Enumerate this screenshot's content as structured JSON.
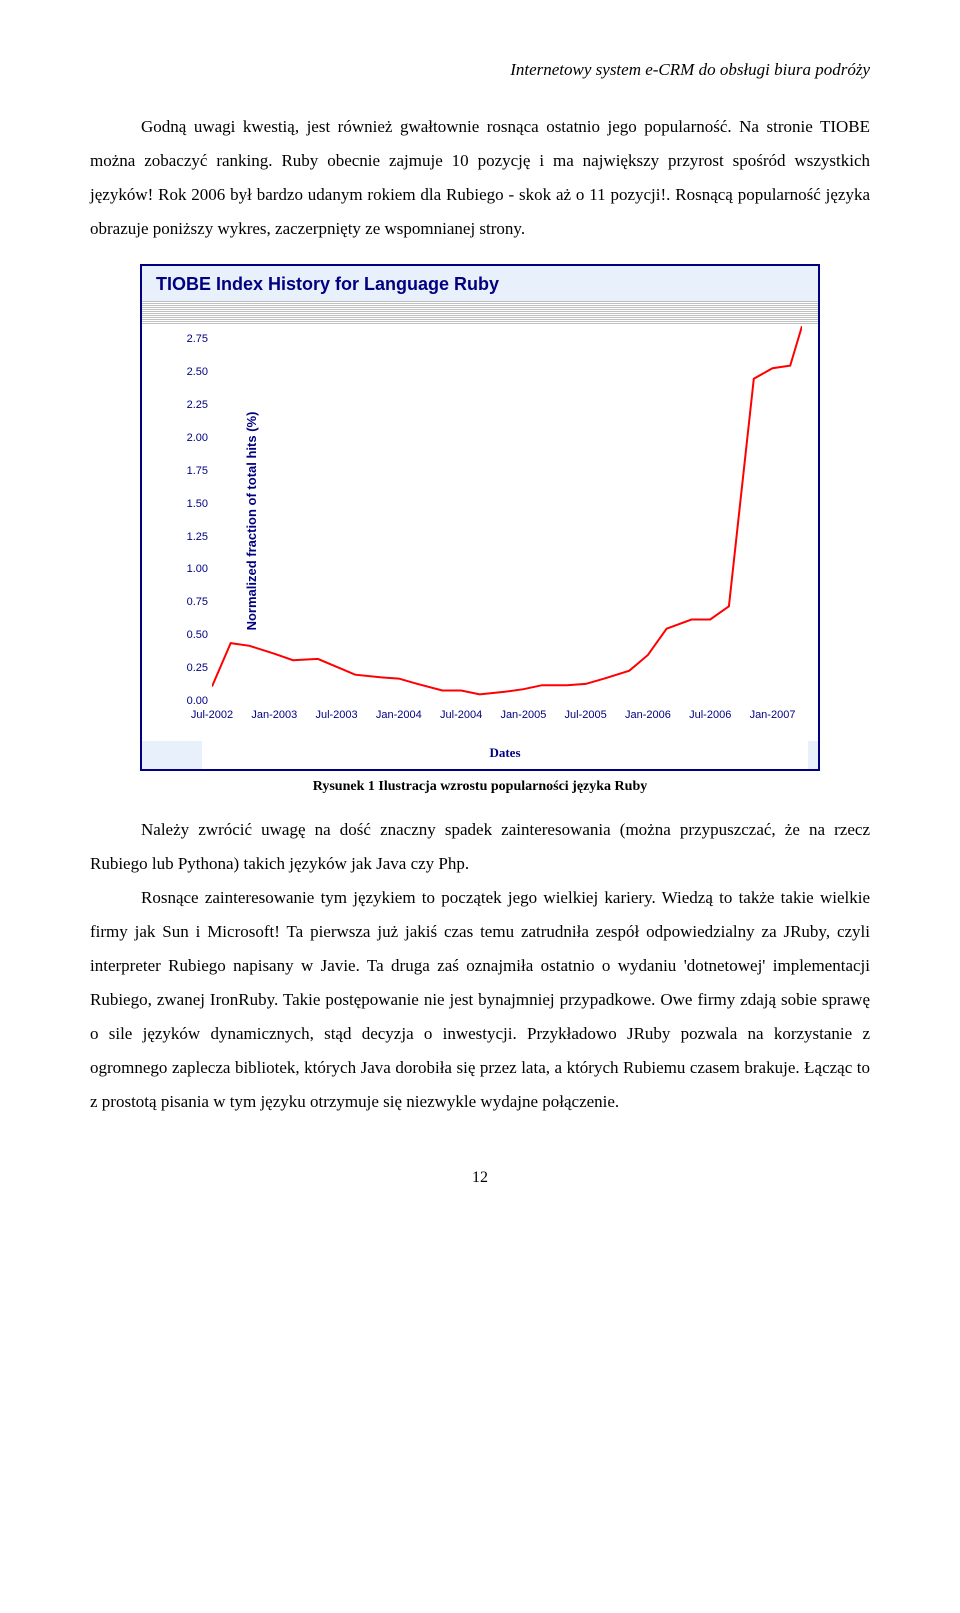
{
  "header": {
    "running_title": "Internetowy system e-CRM do obsługi biura podróży"
  },
  "paragraphs": {
    "p1": "Godną uwagi kwestią, jest również gwałtownie rosnąca ostatnio jego popularność. Na stronie TIOBE można zobaczyć ranking. Ruby obecnie zajmuje 10 pozycję i ma największy przyrost spośród wszystkich języków! Rok 2006 był bardzo udanym rokiem dla Rubiego - skok aż o 11 pozycji!. Rosnącą popularność języka obrazuje poniższy wykres, zaczerpnięty ze wspomnianej strony.",
    "p2": "Należy zwrócić uwagę na dość znaczny spadek zainteresowania (można przypuszczać, że na rzecz Rubiego lub Pythona) takich języków jak Java czy Php.",
    "p3": "Rosnące zainteresowanie tym językiem to początek jego wielkiej kariery. Wiedzą to także takie wielkie firmy jak Sun i Microsoft! Ta pierwsza już jakiś czas temu zatrudniła zespół odpowiedzialny za JRuby, czyli interpreter Rubiego napisany w Javie. Ta druga zaś oznajmiła ostatnio o wydaniu 'dotnetowej' implementacji Rubiego, zwanej IronRuby. Takie postępowanie nie jest bynajmniej przypadkowe. Owe firmy zdają sobie sprawę o sile języków dynamicznych, stąd decyzja o inwestycji. Przykładowo JRuby pozwala na korzystanie z ogromnego zaplecza bibliotek, których Java dorobiła się przez lata, a których Rubiemu czasem brakuje. Łącząc to z prostotą pisania w tym języku otrzymuje się niezwykle wydajne połączenie."
  },
  "figure": {
    "caption": "Rysunek 1 Ilustracja wzrostu popularności języka Ruby",
    "chart": {
      "type": "line",
      "title": "TIOBE Index History for Language Ruby",
      "x_axis_label": "Dates",
      "y_axis_label": "Normalized fraction of total hits (%)",
      "background_color": "#e8f0fc",
      "plot_bg": "#ffffff",
      "border_color": "#000080",
      "grid_color": "#c0c0c0",
      "text_color": "#000080",
      "line_color": "#ff0000",
      "line_width": 2,
      "ylim": [
        0.0,
        2.95
      ],
      "ytick_step": 0.25,
      "yticks": [
        "0.00",
        "0.25",
        "0.50",
        "0.75",
        "1.00",
        "1.25",
        "1.50",
        "1.75",
        "2.00",
        "2.25",
        "2.50",
        "2.75"
      ],
      "x_categories": [
        "Jul-2002",
        "Jan-2003",
        "Jul-2003",
        "Jan-2004",
        "Jul-2004",
        "Jan-2005",
        "Jul-2005",
        "Jan-2006",
        "Jul-2006",
        "Jan-2007"
      ],
      "data_points_x": [
        0,
        0.3,
        0.6,
        1.0,
        1.3,
        1.7,
        2.0,
        2.3,
        2.7,
        3.0,
        3.3,
        3.7,
        4.0,
        4.3,
        4.7,
        5.0,
        5.3,
        5.7,
        6.0,
        6.3,
        6.7,
        7.0,
        7.3,
        7.7,
        8.0,
        8.3,
        8.7,
        9.0,
        9.3,
        9.5
      ],
      "data_points_y": [
        0.11,
        0.44,
        0.42,
        0.36,
        0.31,
        0.32,
        0.26,
        0.2,
        0.18,
        0.17,
        0.13,
        0.08,
        0.08,
        0.05,
        0.07,
        0.09,
        0.12,
        0.12,
        0.13,
        0.17,
        0.23,
        0.35,
        0.55,
        0.62,
        0.62,
        0.72,
        2.45,
        2.53,
        2.55,
        2.85
      ],
      "title_fontsize": 18,
      "axis_label_fontsize": 13,
      "tick_fontsize": 11
    }
  },
  "page_number": "12"
}
